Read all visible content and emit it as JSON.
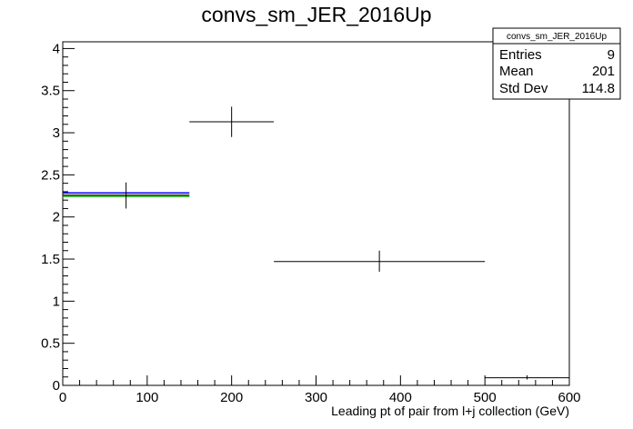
{
  "chart_data": {
    "type": "scatter",
    "title": "convs_sm_JER_2016Up",
    "xlabel": "Leading pt of pair from l+j collection (GeV)",
    "ylabel": "",
    "xlim": [
      0,
      600
    ],
    "ylim": [
      0,
      4.08
    ],
    "x_ticks": [
      0,
      100,
      200,
      300,
      400,
      500,
      600
    ],
    "y_ticks": [
      0,
      0.5,
      1,
      1.5,
      2,
      2.5,
      3,
      3.5,
      4
    ],
    "x_tick_labels": [
      "0",
      "100",
      "200",
      "300",
      "400",
      "500",
      "600"
    ],
    "y_tick_labels": [
      "0",
      "0.5",
      "1",
      "1.5",
      "2",
      "2.5",
      "3",
      "3.5",
      "4"
    ],
    "grid": false,
    "points": [
      {
        "x": 75,
        "xlow": 0,
        "xhigh": 150,
        "y": 2.26,
        "ylow": 2.1,
        "yhigh": 2.41
      },
      {
        "x": 200,
        "xlow": 150,
        "xhigh": 250,
        "y": 3.13,
        "ylow": 2.95,
        "yhigh": 3.31
      },
      {
        "x": 375,
        "xlow": 250,
        "xhigh": 500,
        "y": 1.47,
        "ylow": 1.35,
        "yhigh": 1.6
      },
      {
        "x": 550,
        "xlow": 500,
        "xhigh": 600,
        "y": 0.09,
        "ylow": 0.07,
        "yhigh": 0.12
      }
    ],
    "reference_lines": [
      {
        "color": "#0000ff",
        "y": 2.285,
        "xmin": 0,
        "xmax": 150
      },
      {
        "color": "#00aa00",
        "y": 2.245,
        "xmin": 0,
        "xmax": 150
      }
    ],
    "stats_box": {
      "title": "convs_sm_JER_2016Up",
      "position": "top-right",
      "rows": [
        {
          "label": "Entries",
          "value": "9"
        },
        {
          "label": "Mean",
          "value": "201"
        },
        {
          "label": "Std Dev",
          "value": "114.8"
        }
      ]
    }
  }
}
